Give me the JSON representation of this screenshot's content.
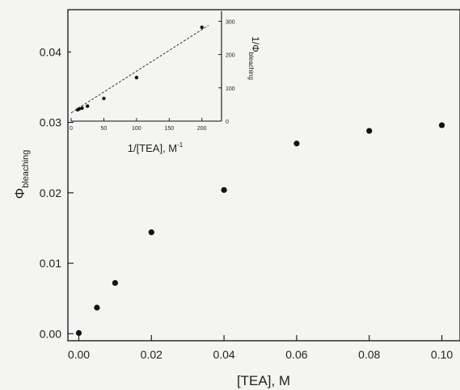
{
  "chart_data": [
    {
      "type": "scatter",
      "title": "",
      "xlabel": "[TEA], M",
      "ylabel": "Φ",
      "ylabel_sub": "bleaching",
      "xlim": [
        -0.003,
        0.105
      ],
      "ylim": [
        -0.001,
        0.046
      ],
      "xticks": [
        0.0,
        0.02,
        0.04,
        0.06,
        0.08,
        0.1
      ],
      "xtick_labels": [
        "0.00",
        "0.02",
        "0.04",
        "0.06",
        "0.08",
        "0.10"
      ],
      "yticks": [
        0.0,
        0.01,
        0.02,
        0.03,
        0.04
      ],
      "ytick_labels": [
        "0.00",
        "0.01",
        "0.02",
        "0.03",
        "0.04"
      ],
      "grid": false,
      "series": [
        {
          "points": [
            [
              0.0,
              0.0001
            ],
            [
              0.005,
              0.0037
            ],
            [
              0.01,
              0.0072
            ],
            [
              0.02,
              0.0144
            ],
            [
              0.04,
              0.0204
            ],
            [
              0.06,
              0.027
            ],
            [
              0.08,
              0.0288
            ],
            [
              0.1,
              0.0296
            ]
          ]
        }
      ]
    },
    {
      "type": "scatter",
      "title": "",
      "xlabel": "1/[TEA], M",
      "xlabel_sup": "-1",
      "ylabel": "1/Φ",
      "ylabel_sub": "bleaching",
      "xlim": [
        0,
        230
      ],
      "ylim": [
        0,
        330
      ],
      "xticks": [
        0,
        50,
        100,
        150,
        200
      ],
      "xtick_labels": [
        "0",
        "50",
        "100",
        "150",
        "200"
      ],
      "yticks": [
        0,
        100,
        200,
        300
      ],
      "ytick_labels": [
        "0",
        "100",
        "200",
        "300"
      ],
      "grid": false,
      "series": [
        {
          "points": [
            [
              10,
              34
            ],
            [
              12.5,
              37
            ],
            [
              16.7,
              39
            ],
            [
              25,
              45
            ],
            [
              50,
              68
            ],
            [
              100,
              131
            ],
            [
              200,
              282
            ]
          ]
        }
      ],
      "fit_line": {
        "slope": 1.25,
        "intercept": 25
      }
    }
  ]
}
